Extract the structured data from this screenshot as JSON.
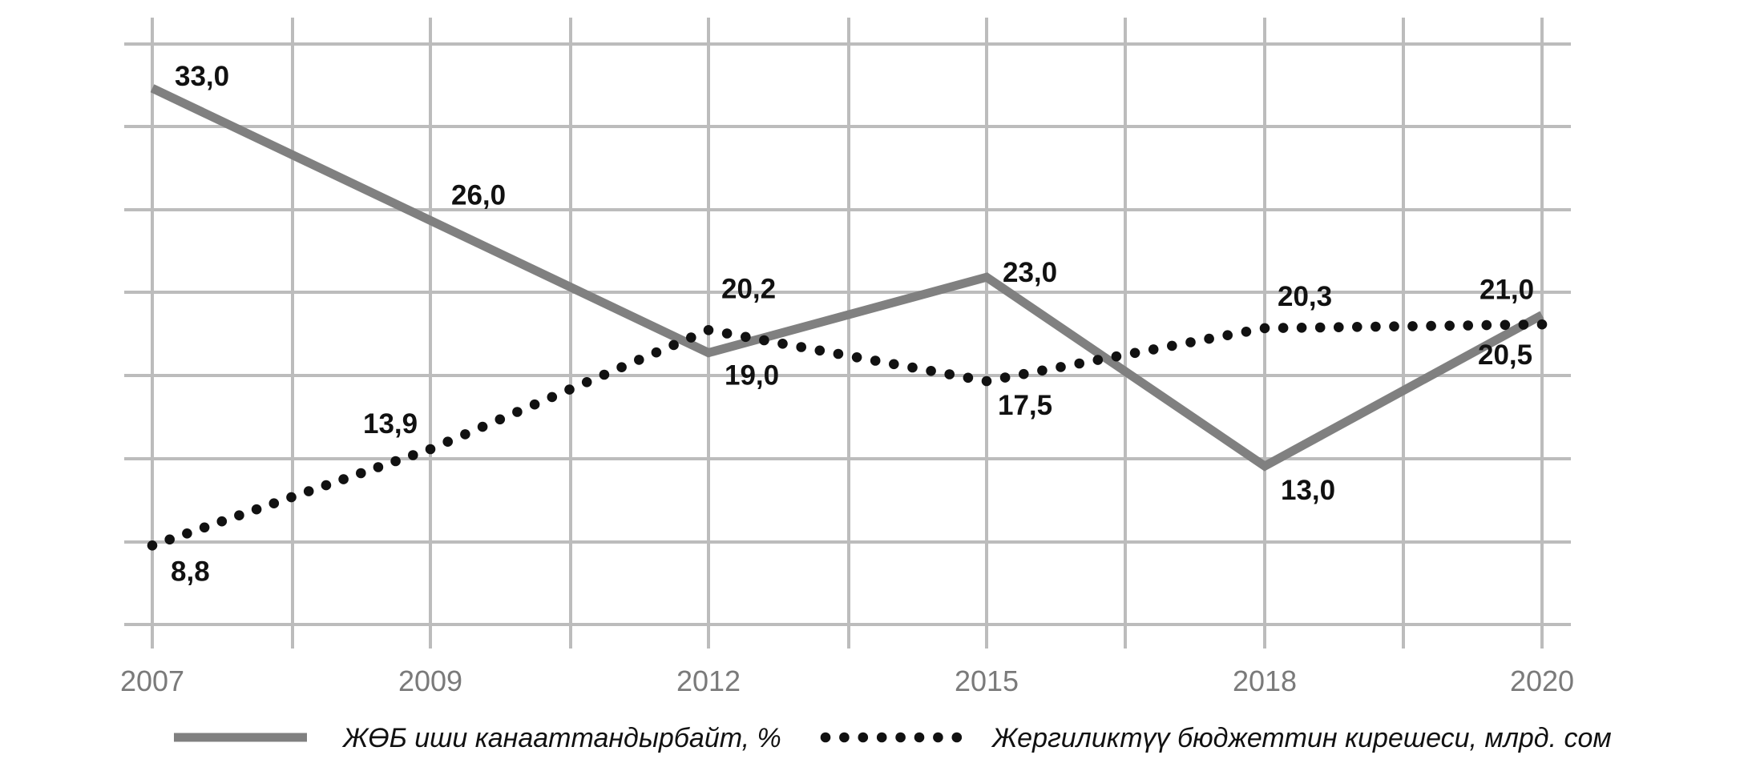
{
  "chart_data": {
    "type": "line",
    "title": "",
    "xlabel": "",
    "ylabel": "",
    "x_tick_labels": [
      "2007",
      "2009",
      "2012",
      "2015",
      "2018",
      "2020"
    ],
    "grid": true,
    "legend_position": "bottom",
    "series": [
      {
        "name": "ЖӨБ иши канааттандырбайт, %",
        "style": "solid",
        "color": "#808080",
        "points": [
          {
            "x": "2007",
            "y": 33.0,
            "label": "33,0"
          },
          {
            "x": "2009",
            "y": 26.0,
            "label": "26,0"
          },
          {
            "x": "2012",
            "y": 19.0,
            "label": "19,0"
          },
          {
            "x": "2015",
            "y": 23.0,
            "label": "23,0"
          },
          {
            "x": "2018",
            "y": 13.0,
            "label": "13,0"
          },
          {
            "x": "2020",
            "y": 21.0,
            "label": "21,0"
          }
        ]
      },
      {
        "name": "Жергиликтүү бюджеттин кирешеси, млрд. сом",
        "style": "dotted",
        "color": "#111111",
        "points": [
          {
            "x": "2007",
            "y": 8.8,
            "label": "8,8"
          },
          {
            "x": "2009",
            "y": 13.9,
            "label": "13,9"
          },
          {
            "x": "2012",
            "y": 20.2,
            "label": "20,2"
          },
          {
            "x": "2015",
            "y": 17.5,
            "label": "17,5"
          },
          {
            "x": "2018",
            "y": 20.3,
            "label": "20,3"
          },
          {
            "x": "2020",
            "y": 20.5,
            "label": "20,5"
          }
        ]
      }
    ]
  }
}
